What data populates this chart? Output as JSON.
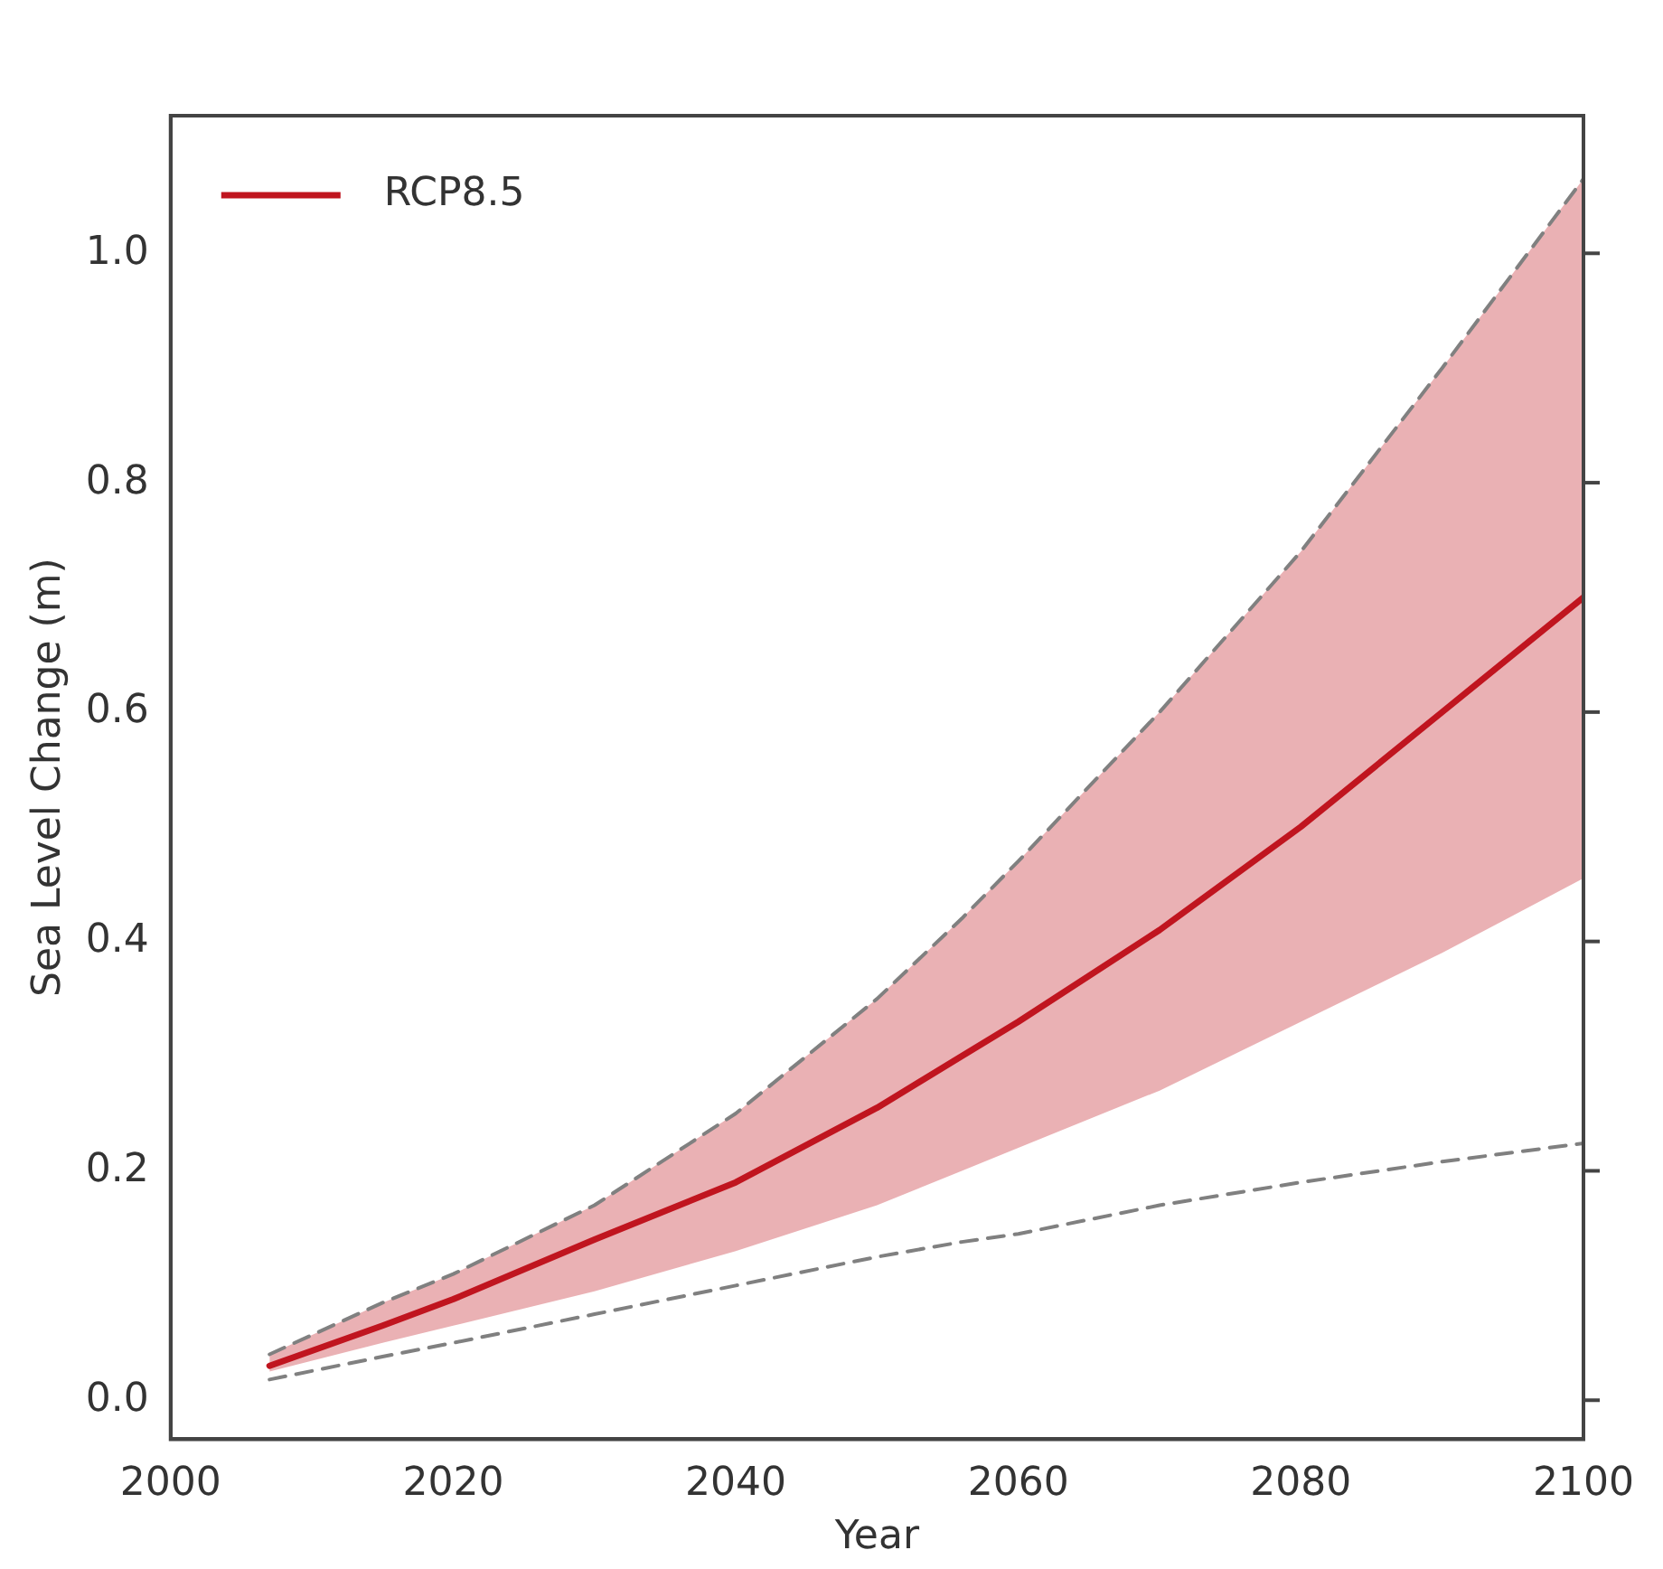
{
  "chart_data": {
    "type": "line",
    "xlabel": "Year",
    "ylabel": "Sea Level Change (m)",
    "x": [
      2007,
      2015,
      2020,
      2030,
      2040,
      2050,
      2056,
      2060,
      2070,
      2080,
      2090,
      2100
    ],
    "series": [
      {
        "name": "RCP8.5",
        "color": "#c0151f",
        "line_style": "solid",
        "values": [
          0.03,
          0.065,
          0.088,
          0.14,
          0.19,
          0.255,
          0.3,
          0.33,
          0.41,
          0.5,
          0.6,
          0.7
        ],
        "lower": [
          0.025,
          0.05,
          0.065,
          0.095,
          0.13,
          0.17,
          0.2,
          0.22,
          0.27,
          0.33,
          0.39,
          0.455
        ],
        "upper": [
          0.04,
          0.085,
          0.11,
          0.17,
          0.25,
          0.35,
          0.42,
          0.47,
          0.6,
          0.74,
          0.9,
          1.065
        ]
      },
      {
        "color": "#808080",
        "line_style": "dashed",
        "values": [
          0.04,
          0.085,
          0.11,
          0.17,
          0.25,
          0.35,
          0.42,
          0.47,
          0.6,
          0.74,
          0.9,
          1.065
        ]
      },
      {
        "color": "#808080",
        "line_style": "dashed",
        "values": [
          0.018,
          0.038,
          0.05,
          0.075,
          0.1,
          0.125,
          0.138,
          0.145,
          0.17,
          0.19,
          0.208,
          0.224
        ]
      }
    ],
    "xlim": [
      2000,
      2100
    ],
    "xticks": [
      2000,
      2020,
      2040,
      2060,
      2080,
      2100
    ],
    "ylim": [
      -0.034,
      1.12
    ],
    "yticks": [
      {
        "value": 0,
        "label": "0.0"
      },
      {
        "value": 0.2,
        "label": "0.2"
      },
      {
        "value": 0.4,
        "label": "0.4"
      },
      {
        "value": 0.6,
        "label": "0.6"
      },
      {
        "value": 0.8,
        "label": "0.8"
      },
      {
        "value": 1,
        "label": "1.0"
      }
    ],
    "legend": "top left",
    "grid": false
  }
}
